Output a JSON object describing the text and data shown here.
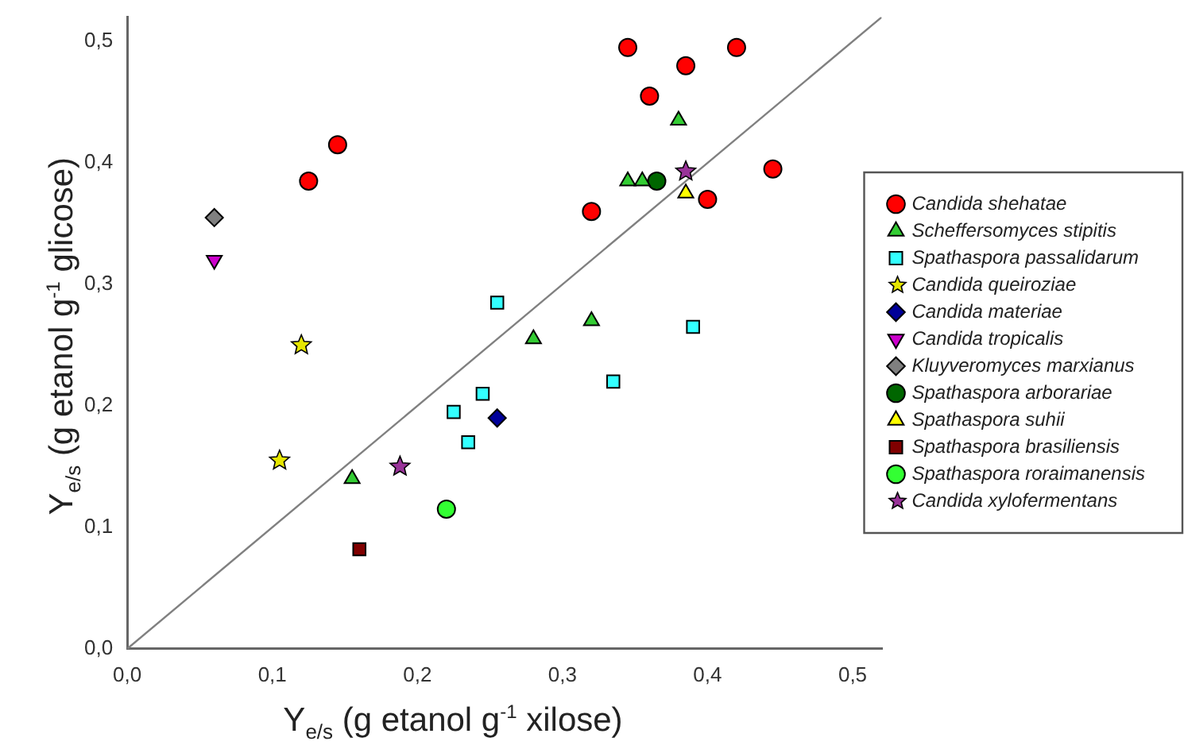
{
  "chart_data": {
    "type": "scatter",
    "xlabel": "Y$_{e/s}$ (g etanol g$^{-1}$ xilose)",
    "ylabel": "Y$_{e/s}$ (g etanol g$^{-1}$ glicose)",
    "xlim": [
      0,
      0.52
    ],
    "ylim": [
      0,
      0.52
    ],
    "xticks": [
      {
        "value": 0,
        "label": "0,0"
      },
      {
        "value": 0.1,
        "label": "0,1"
      },
      {
        "value": 0.2,
        "label": "0,2"
      },
      {
        "value": 0.3,
        "label": "0,3"
      },
      {
        "value": 0.4,
        "label": "0,4"
      },
      {
        "value": 0.5,
        "label": "0,5"
      }
    ],
    "yticks": [
      {
        "value": 0,
        "label": "0,0"
      },
      {
        "value": 0.1,
        "label": "0,1"
      },
      {
        "value": 0.2,
        "label": "0,2"
      },
      {
        "value": 0.3,
        "label": "0,3"
      },
      {
        "value": 0.4,
        "label": "0,4"
      },
      {
        "value": 0.5,
        "label": "0,5"
      }
    ],
    "legend": "right",
    "grid": false,
    "series": [
      {
        "type": "line",
        "color": "#808080",
        "marker": "none",
        "x": [
          0,
          0.52
        ],
        "values": [
          0,
          0.52
        ]
      },
      {
        "name": "Candida shehatae",
        "color": "#ff0000",
        "marker": "circle",
        "x": [
          0.145,
          0.125,
          0.345,
          0.36,
          0.385,
          0.42,
          0.32,
          0.4,
          0.445
        ],
        "values": [
          0.415,
          0.385,
          0.495,
          0.455,
          0.48,
          0.495,
          0.36,
          0.37,
          0.395
        ]
      },
      {
        "name": "Scheffersomyces stipitis",
        "color": "#33cc33",
        "marker": "triangle",
        "x": [
          0.38,
          0.345,
          0.355,
          0.28,
          0.32,
          0.155
        ],
        "values": [
          0.435,
          0.385,
          0.385,
          0.255,
          0.27,
          0.14
        ]
      },
      {
        "name": "Spathaspora passalidarum",
        "color": "#33ffff",
        "marker": "square",
        "x": [
          0.255,
          0.39,
          0.335,
          0.245,
          0.225,
          0.235
        ],
        "values": [
          0.285,
          0.265,
          0.22,
          0.21,
          0.195,
          0.17
        ]
      },
      {
        "name": "Candida queiroziae",
        "color": "#e6e600",
        "marker": "star",
        "x": [
          0.12,
          0.105
        ],
        "values": [
          0.25,
          0.155
        ]
      },
      {
        "name": "Candida materiae",
        "color": "#000099",
        "marker": "diamond",
        "x": [
          0.255
        ],
        "values": [
          0.19
        ]
      },
      {
        "name": "Candida tropicalis",
        "color": "#cc00cc",
        "marker": "triangle-down",
        "x": [
          0.06
        ],
        "values": [
          0.32
        ]
      },
      {
        "name": "Kluyveromyces marxianus",
        "color": "#808080",
        "marker": "diamond",
        "x": [
          0.06
        ],
        "values": [
          0.355
        ]
      },
      {
        "name": "Spathaspora arborariae",
        "color": "#006600",
        "marker": "circle",
        "x": [
          0.365
        ],
        "values": [
          0.385
        ]
      },
      {
        "name": "Spathaspora suhii",
        "color": "#ffff00",
        "marker": "triangle",
        "x": [
          0.385
        ],
        "values": [
          0.375
        ]
      },
      {
        "name": "Spathaspora brasiliensis",
        "color": "#800000",
        "marker": "square",
        "x": [
          0.16
        ],
        "values": [
          0.082
        ]
      },
      {
        "name": "Spathaspora roraimanensis",
        "color": "#33ff33",
        "marker": "circle",
        "x": [
          0.22
        ],
        "values": [
          0.115
        ]
      },
      {
        "name": "Candida xylofermentans",
        "color": "#993399",
        "marker": "star",
        "x": [
          0.385,
          0.188
        ],
        "values": [
          0.393,
          0.15
        ]
      }
    ]
  }
}
